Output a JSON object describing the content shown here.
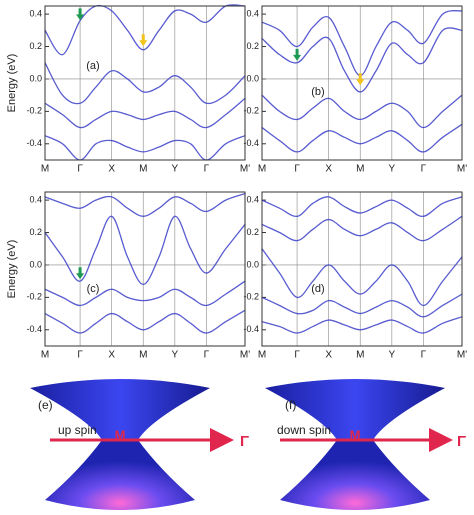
{
  "chart_data": [
    {
      "type": "bands",
      "label": "(a)",
      "y_label": "Energy (eV)",
      "color": "#3b3fc8",
      "x": [
        0,
        0.5,
        1,
        1.45,
        1.9,
        2.35,
        2.8,
        3.25,
        3.7,
        4.15,
        4.6,
        5.15,
        5.7
      ],
      "bands": [
        [
          0.3,
          0.15,
          0.36,
          0.45,
          0.42,
          0.3,
          0.18,
          0.3,
          0.42,
          0.4,
          0.35,
          0.45,
          0.45
        ],
        [
          0.1,
          -0.1,
          -0.15,
          -0.05,
          0.05,
          0.0,
          -0.08,
          -0.05,
          0.02,
          -0.05,
          -0.15,
          -0.1,
          0.02
        ],
        [
          -0.15,
          -0.22,
          -0.3,
          -0.25,
          -0.2,
          -0.22,
          -0.25,
          -0.22,
          -0.2,
          -0.25,
          -0.3,
          -0.22,
          -0.12
        ],
        [
          -0.35,
          -0.4,
          -0.5,
          -0.4,
          -0.38,
          -0.42,
          -0.45,
          -0.42,
          -0.38,
          -0.4,
          -0.5,
          -0.4,
          -0.35
        ]
      ],
      "markers": [
        {
          "x": 1,
          "y": 0.38,
          "color": "#1f9a55"
        },
        {
          "x": 2.8,
          "y": 0.22,
          "color": "#f2c31c"
        }
      ],
      "xlim": [
        0,
        5.7
      ],
      "ylim": [
        -0.5,
        0.45
      ],
      "xticks": [
        {
          "value": 0,
          "label": "M"
        },
        {
          "value": 1,
          "label": "Γ"
        },
        {
          "value": 1.9,
          "label": "X"
        },
        {
          "value": 2.8,
          "label": "M"
        },
        {
          "value": 3.7,
          "label": "Y"
        },
        {
          "value": 4.6,
          "label": "Γ"
        },
        {
          "value": 5.7,
          "label": "M'"
        }
      ],
      "yticks": [
        -0.4,
        -0.2,
        {
          "value": 0,
          "label": "0.0"
        },
        0.2,
        0.4
      ]
    },
    {
      "type": "bands",
      "label": "(b)",
      "color": "#3b3fc8",
      "x": [
        0,
        0.5,
        1,
        1.45,
        1.9,
        2.35,
        2.8,
        3.25,
        3.7,
        4.15,
        4.6,
        5.15,
        5.7
      ],
      "bands": [
        [
          0.35,
          0.3,
          0.2,
          0.32,
          0.38,
          0.2,
          0.02,
          0.2,
          0.35,
          0.3,
          0.22,
          0.4,
          0.42
        ],
        [
          0.25,
          0.15,
          0.1,
          0.2,
          0.25,
          0.05,
          -0.08,
          0.05,
          0.22,
          0.15,
          0.1,
          0.3,
          0.3
        ],
        [
          -0.1,
          -0.2,
          -0.25,
          -0.18,
          -0.12,
          -0.2,
          -0.25,
          -0.2,
          -0.15,
          -0.2,
          -0.3,
          -0.2,
          -0.1
        ],
        [
          -0.3,
          -0.38,
          -0.45,
          -0.38,
          -0.32,
          -0.36,
          -0.4,
          -0.36,
          -0.32,
          -0.38,
          -0.45,
          -0.36,
          -0.28
        ]
      ],
      "markers": [
        {
          "x": 1,
          "y": 0.13,
          "color": "#1f9a55"
        },
        {
          "x": 2.8,
          "y": -0.02,
          "color": "#f2c31c"
        }
      ],
      "xlim": [
        0,
        5.7
      ],
      "ylim": [
        -0.5,
        0.45
      ],
      "xticks": [
        {
          "value": 0,
          "label": "M"
        },
        {
          "value": 1,
          "label": "Γ"
        },
        {
          "value": 1.9,
          "label": "X"
        },
        {
          "value": 2.8,
          "label": "M"
        },
        {
          "value": 3.7,
          "label": "Y"
        },
        {
          "value": 4.6,
          "label": "Γ"
        },
        {
          "value": 5.7,
          "label": "M'"
        }
      ],
      "yticks": [
        -0.4,
        -0.2,
        {
          "value": 0,
          "label": "0.0"
        },
        0.2,
        0.4
      ]
    },
    {
      "type": "bands",
      "label": "(c)",
      "y_label": "Energy (eV)",
      "color": "#3b3fc8",
      "x": [
        0,
        0.5,
        1,
        1.45,
        1.9,
        2.35,
        2.8,
        3.25,
        3.7,
        4.15,
        4.6,
        5.15,
        5.7
      ],
      "bands": [
        [
          0.42,
          0.38,
          0.35,
          0.4,
          0.42,
          0.35,
          0.3,
          0.35,
          0.42,
          0.38,
          0.33,
          0.4,
          0.44
        ],
        [
          0.2,
          0.05,
          -0.1,
          0.1,
          0.3,
          0.05,
          -0.12,
          0.05,
          0.3,
          0.1,
          -0.05,
          0.1,
          0.25
        ],
        [
          -0.15,
          -0.2,
          -0.25,
          -0.2,
          -0.15,
          -0.2,
          -0.22,
          -0.2,
          -0.15,
          -0.2,
          -0.25,
          -0.18,
          -0.1
        ],
        [
          -0.3,
          -0.36,
          -0.42,
          -0.36,
          -0.3,
          -0.35,
          -0.4,
          -0.35,
          -0.3,
          -0.36,
          -0.42,
          -0.35,
          -0.28
        ]
      ],
      "markers": [
        {
          "x": 1,
          "y": -0.07,
          "color": "#1f9a55"
        }
      ],
      "xlim": [
        0,
        5.7
      ],
      "ylim": [
        -0.5,
        0.45
      ],
      "xticks": [
        {
          "value": 0,
          "label": "M"
        },
        {
          "value": 1,
          "label": "Γ"
        },
        {
          "value": 1.9,
          "label": "X"
        },
        {
          "value": 2.8,
          "label": "M"
        },
        {
          "value": 3.7,
          "label": "Y"
        },
        {
          "value": 4.6,
          "label": "Γ"
        },
        {
          "value": 5.7,
          "label": "M'"
        }
      ],
      "yticks": [
        -0.4,
        -0.2,
        {
          "value": 0,
          "label": "0.0"
        },
        0.2,
        0.4
      ]
    },
    {
      "type": "bands",
      "label": "(d)",
      "color": "#3b3fc8",
      "x": [
        0,
        0.5,
        1,
        1.45,
        1.9,
        2.35,
        2.8,
        3.25,
        3.7,
        4.15,
        4.6,
        5.15,
        5.7
      ],
      "bands": [
        [
          0.4,
          0.35,
          0.3,
          0.38,
          0.42,
          0.36,
          0.32,
          0.36,
          0.4,
          0.35,
          0.3,
          0.38,
          0.42
        ],
        [
          0.25,
          0.2,
          0.15,
          0.22,
          0.28,
          0.22,
          0.18,
          0.22,
          0.26,
          0.2,
          0.15,
          0.22,
          0.3
        ],
        [
          0.1,
          -0.05,
          -0.2,
          -0.1,
          0.0,
          -0.1,
          -0.18,
          -0.1,
          0.0,
          -0.1,
          -0.25,
          -0.1,
          0.05
        ],
        [
          -0.2,
          -0.25,
          -0.3,
          -0.28,
          -0.22,
          -0.26,
          -0.3,
          -0.26,
          -0.22,
          -0.26,
          -0.32,
          -0.25,
          -0.18
        ],
        [
          -0.35,
          -0.38,
          -0.42,
          -0.38,
          -0.34,
          -0.37,
          -0.4,
          -0.37,
          -0.34,
          -0.38,
          -0.42,
          -0.36,
          -0.32
        ]
      ],
      "markers": [],
      "xlim": [
        0,
        5.7
      ],
      "ylim": [
        -0.5,
        0.45
      ],
      "xticks": [
        {
          "value": 0,
          "label": "M"
        },
        {
          "value": 1,
          "label": "Γ"
        },
        {
          "value": 1.9,
          "label": "X"
        },
        {
          "value": 2.8,
          "label": "M"
        },
        {
          "value": 3.7,
          "label": "Y"
        },
        {
          "value": 4.6,
          "label": "Γ"
        },
        {
          "value": 5.7,
          "label": "M'"
        }
      ],
      "yticks": [
        -0.4,
        -0.2,
        {
          "value": 0,
          "label": "0.0"
        },
        0.2,
        0.4
      ]
    }
  ],
  "cones": [
    {
      "label": "(e)",
      "spin": "up spin",
      "from": "M",
      "to": "Γ"
    },
    {
      "label": "(f)",
      "spin": "down spin",
      "from": "M",
      "to": "Γ"
    }
  ]
}
